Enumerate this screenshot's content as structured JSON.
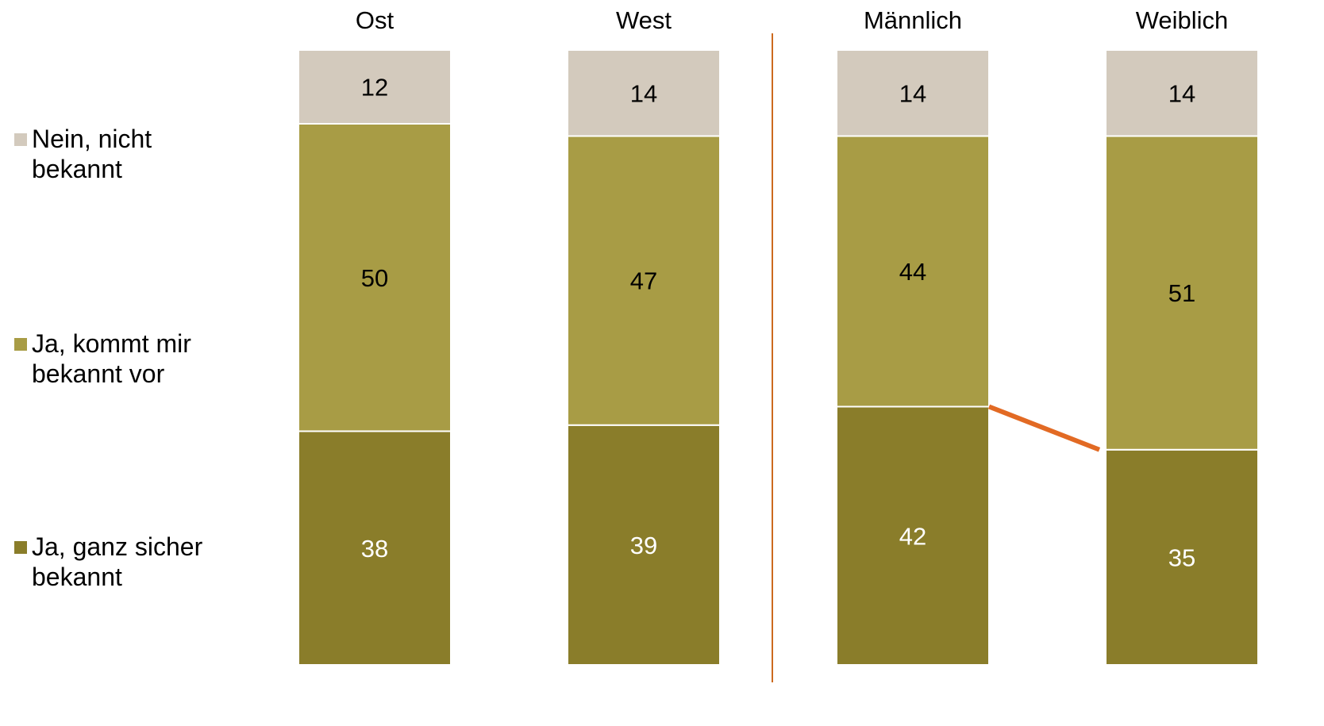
{
  "chart_data": {
    "type": "bar",
    "stacked": true,
    "categories": [
      "Ost",
      "West",
      "Männlich",
      "Weiblich"
    ],
    "series": [
      {
        "name": "Ja, ganz sicher bekannt",
        "values": [
          38,
          39,
          42,
          35
        ],
        "color": "#8a7d2a"
      },
      {
        "name": "Ja, kommt mir bekannt vor",
        "values": [
          50,
          47,
          44,
          51
        ],
        "color": "#a89c45"
      },
      {
        "name": "Nein, nicht bekannt",
        "values": [
          12,
          14,
          14,
          14
        ],
        "color": "#d3cabd"
      }
    ],
    "value_label_colors": [
      "#ffffff",
      "#000000",
      "#000000"
    ],
    "group_separator_color": "#cc6a1f",
    "connector": {
      "series_index": 0,
      "from_category": 2,
      "to_category": 3,
      "color": "#e26a24"
    },
    "legend_position": "left",
    "ylim": [
      0,
      100
    ],
    "title": "",
    "xlabel": "",
    "ylabel": ""
  }
}
